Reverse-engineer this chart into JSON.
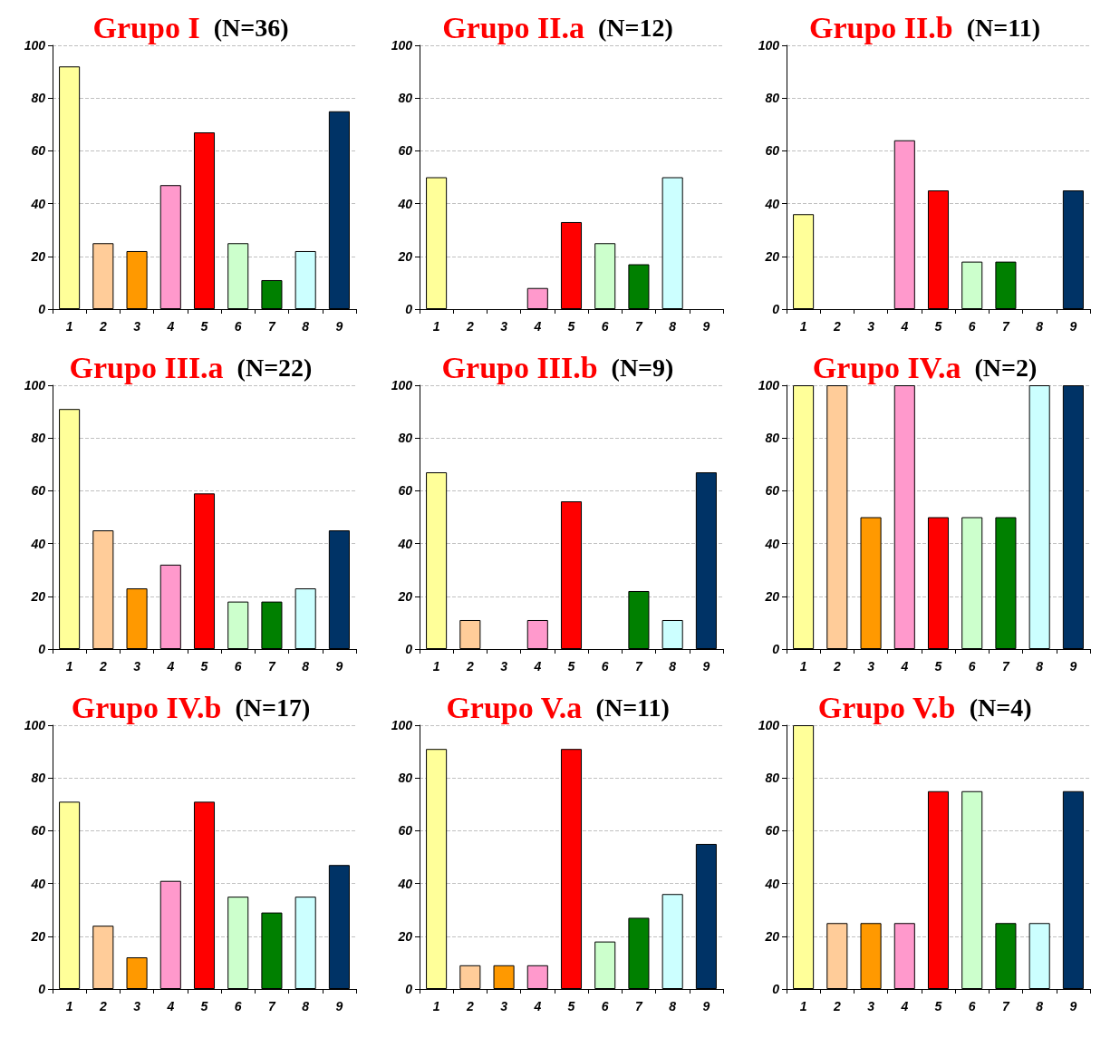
{
  "chart_data": [
    {
      "type": "bar",
      "title": "Grupo I",
      "subtitle": "(N=36)",
      "categories": [
        "1",
        "2",
        "3",
        "4",
        "5",
        "6",
        "7",
        "8",
        "9"
      ],
      "values": [
        92,
        25,
        22,
        47,
        67,
        25,
        11,
        22,
        75
      ],
      "colors": [
        "#ffff99",
        "#ffcc99",
        "#ff9900",
        "#ff99cc",
        "#ff0000",
        "#ccffcc",
        "#008000",
        "#ccffff",
        "#003366"
      ],
      "ylim": [
        0,
        100
      ],
      "yticks": [
        0,
        20,
        40,
        60,
        80,
        100
      ],
      "grid": "y"
    },
    {
      "type": "bar",
      "title": "Grupo II.a",
      "subtitle": "(N=12)",
      "categories": [
        "1",
        "2",
        "3",
        "4",
        "5",
        "6",
        "7",
        "8",
        "9"
      ],
      "values": [
        50,
        0,
        0,
        8,
        33,
        25,
        17,
        50,
        0
      ],
      "colors": [
        "#ffff99",
        "#ffcc99",
        "#ff9900",
        "#ff99cc",
        "#ff0000",
        "#ccffcc",
        "#008000",
        "#ccffff",
        "#003366"
      ],
      "ylim": [
        0,
        100
      ],
      "yticks": [
        0,
        20,
        40,
        60,
        80,
        100
      ],
      "grid": "y"
    },
    {
      "type": "bar",
      "title": "Grupo II.b",
      "subtitle": "(N=11)",
      "categories": [
        "1",
        "2",
        "3",
        "4",
        "5",
        "6",
        "7",
        "8",
        "9"
      ],
      "values": [
        36,
        0,
        0,
        64,
        45,
        18,
        18,
        0,
        45
      ],
      "colors": [
        "#ffff99",
        "#ffcc99",
        "#ff9900",
        "#ff99cc",
        "#ff0000",
        "#ccffcc",
        "#008000",
        "#ccffff",
        "#003366"
      ],
      "ylim": [
        0,
        100
      ],
      "yticks": [
        0,
        20,
        40,
        60,
        80,
        100
      ],
      "grid": "y"
    },
    {
      "type": "bar",
      "title": "Grupo III.a",
      "subtitle": "(N=22)",
      "categories": [
        "1",
        "2",
        "3",
        "4",
        "5",
        "6",
        "7",
        "8",
        "9"
      ],
      "values": [
        91,
        45,
        23,
        32,
        59,
        18,
        18,
        23,
        45
      ],
      "colors": [
        "#ffff99",
        "#ffcc99",
        "#ff9900",
        "#ff99cc",
        "#ff0000",
        "#ccffcc",
        "#008000",
        "#ccffff",
        "#003366"
      ],
      "ylim": [
        0,
        100
      ],
      "yticks": [
        0,
        20,
        40,
        60,
        80,
        100
      ],
      "grid": "y"
    },
    {
      "type": "bar",
      "title": "Grupo III.b",
      "subtitle": "(N=9)",
      "categories": [
        "1",
        "2",
        "3",
        "4",
        "5",
        "6",
        "7",
        "8",
        "9"
      ],
      "values": [
        67,
        11,
        0,
        11,
        56,
        0,
        22,
        11,
        67
      ],
      "colors": [
        "#ffff99",
        "#ffcc99",
        "#ff9900",
        "#ff99cc",
        "#ff0000",
        "#ccffcc",
        "#008000",
        "#ccffff",
        "#003366"
      ],
      "ylim": [
        0,
        100
      ],
      "yticks": [
        0,
        20,
        40,
        60,
        80,
        100
      ],
      "grid": "y"
    },
    {
      "type": "bar",
      "title": "Grupo IV.a",
      "subtitle": "(N=2)",
      "categories": [
        "1",
        "2",
        "3",
        "4",
        "5",
        "6",
        "7",
        "8",
        "9"
      ],
      "values": [
        100,
        100,
        50,
        100,
        50,
        50,
        50,
        100,
        100
      ],
      "colors": [
        "#ffff99",
        "#ffcc99",
        "#ff9900",
        "#ff99cc",
        "#ff0000",
        "#ccffcc",
        "#008000",
        "#ccffff",
        "#003366"
      ],
      "ylim": [
        0,
        100
      ],
      "yticks": [
        0,
        20,
        40,
        60,
        80,
        100
      ],
      "grid": "y"
    },
    {
      "type": "bar",
      "title": "Grupo IV.b",
      "subtitle": "(N=17)",
      "categories": [
        "1",
        "2",
        "3",
        "4",
        "5",
        "6",
        "7",
        "8",
        "9"
      ],
      "values": [
        71,
        24,
        12,
        41,
        71,
        35,
        29,
        35,
        47
      ],
      "colors": [
        "#ffff99",
        "#ffcc99",
        "#ff9900",
        "#ff99cc",
        "#ff0000",
        "#ccffcc",
        "#008000",
        "#ccffff",
        "#003366"
      ],
      "ylim": [
        0,
        100
      ],
      "yticks": [
        0,
        20,
        40,
        60,
        80,
        100
      ],
      "grid": "y"
    },
    {
      "type": "bar",
      "title": "Grupo V.a",
      "subtitle": "(N=11)",
      "categories": [
        "1",
        "2",
        "3",
        "4",
        "5",
        "6",
        "7",
        "8",
        "9"
      ],
      "values": [
        91,
        9,
        9,
        9,
        91,
        18,
        27,
        36,
        55
      ],
      "colors": [
        "#ffff99",
        "#ffcc99",
        "#ff9900",
        "#ff99cc",
        "#ff0000",
        "#ccffcc",
        "#008000",
        "#ccffff",
        "#003366"
      ],
      "ylim": [
        0,
        100
      ],
      "yticks": [
        0,
        20,
        40,
        60,
        80,
        100
      ],
      "grid": "y"
    },
    {
      "type": "bar",
      "title": "Grupo V.b",
      "subtitle": "(N=4)",
      "categories": [
        "1",
        "2",
        "3",
        "4",
        "5",
        "6",
        "7",
        "8",
        "9"
      ],
      "values": [
        100,
        25,
        25,
        25,
        75,
        75,
        25,
        25,
        75
      ],
      "colors": [
        "#ffff99",
        "#ffcc99",
        "#ff9900",
        "#ff99cc",
        "#ff0000",
        "#ccffcc",
        "#008000",
        "#ccffff",
        "#003366"
      ],
      "ylim": [
        0,
        100
      ],
      "yticks": [
        0,
        20,
        40,
        60,
        80,
        100
      ],
      "grid": "y"
    }
  ]
}
